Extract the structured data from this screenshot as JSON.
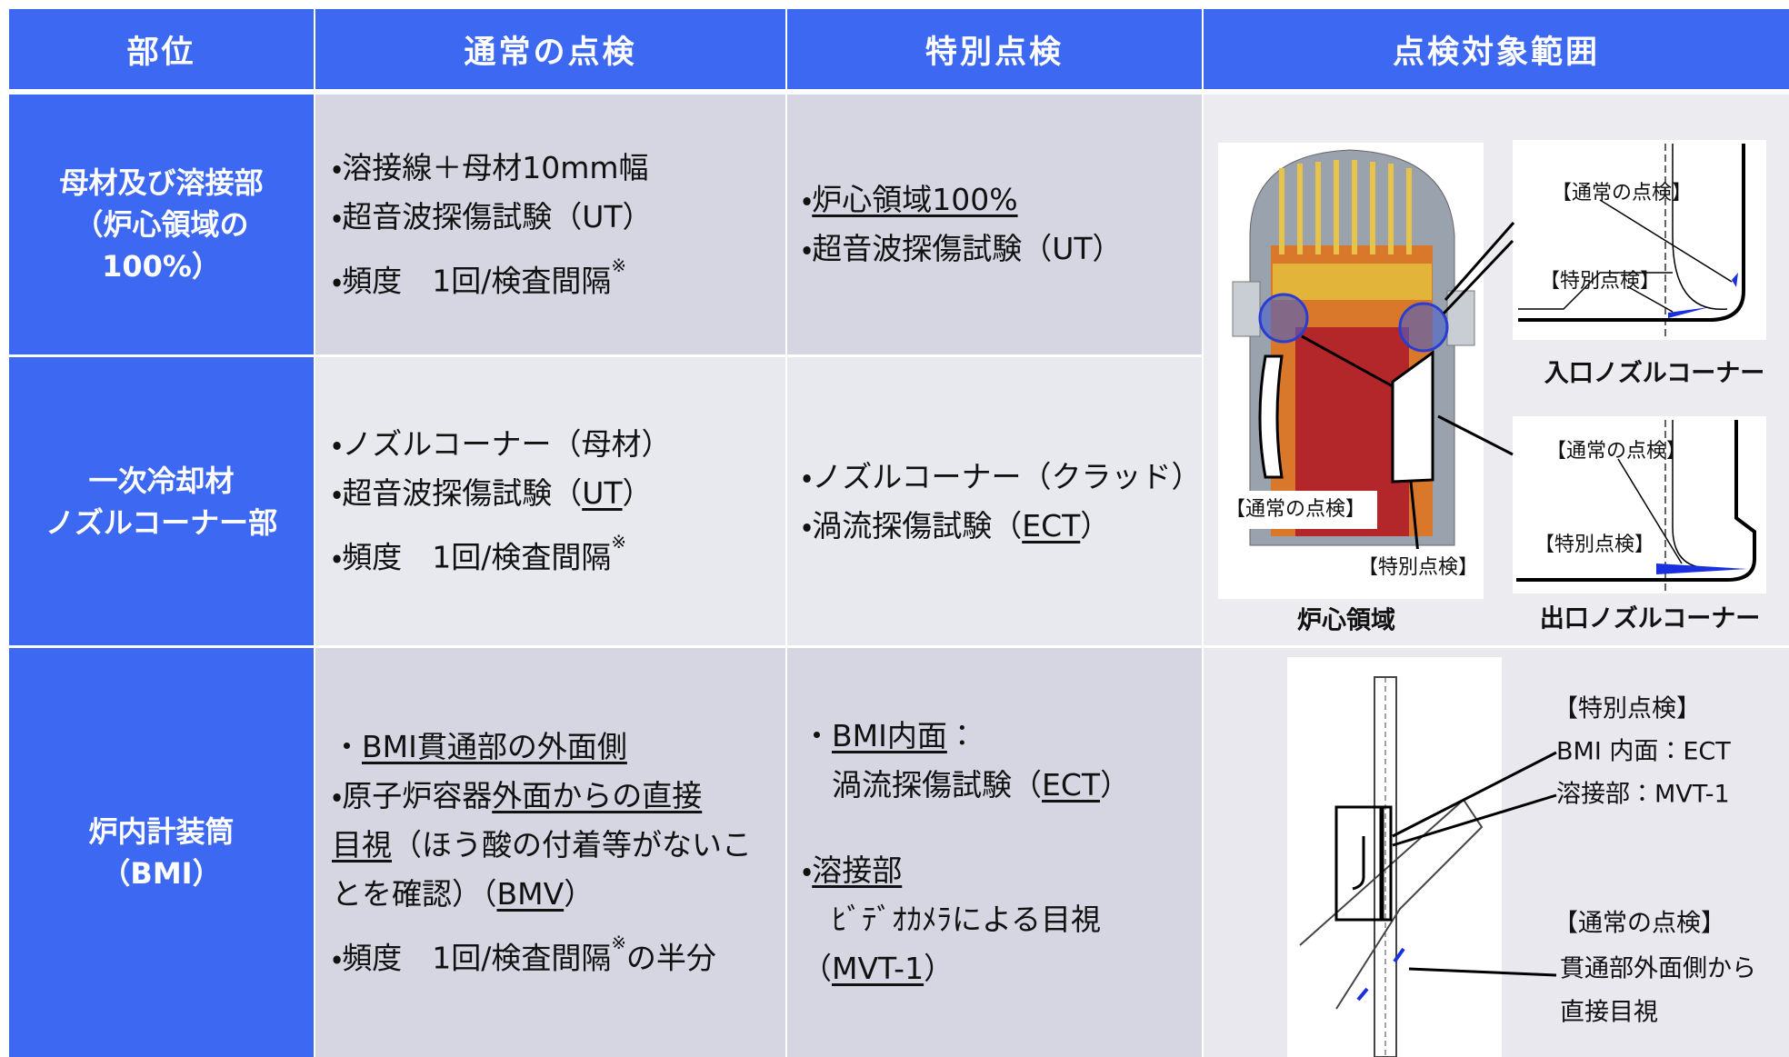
{
  "header": [
    "部位",
    "通常の点検",
    "特別点検",
    "点検対象範囲"
  ],
  "rows": [
    {
      "part": [
        "母材及び溶接部",
        "（炉心領域の",
        "100%）"
      ],
      "normal": [
        [
          [
            "・溶接線＋母材10mm幅"
          ],
          [
            "・超音波探傷試験（UT）"
          ],
          [
            "・頻度　1回/検査間隔",
            {
              "text": "※",
              "superscript": true
            }
          ]
        ]
      ],
      "special": [
        [
          [
            "・",
            {
              "text": "炉心領域100%",
              "underline": true
            }
          ],
          [
            "・超音波探傷試験（UT）"
          ]
        ]
      ]
    },
    {
      "part": [
        "一次冷却材",
        "ノズルコーナー部"
      ],
      "normal": [
        [
          [
            "・ノズルコーナー（母材）"
          ],
          [
            "・超音波探傷試験（",
            {
              "text": "UT",
              "underline": true
            },
            "）"
          ],
          [
            "・頻度　1回/検査間隔",
            {
              "text": "※",
              "superscript": true
            }
          ]
        ]
      ],
      "special": [
        [
          [
            "・ノズルコーナー（クラッド）"
          ],
          [
            "・渦流探傷試験（",
            {
              "text": "ECT",
              "underline": true
            },
            "）"
          ]
        ]
      ]
    },
    {
      "part": [
        "炉内計装筒",
        "（BMI）"
      ],
      "normal": [
        [
          [
            "・",
            {
              "text": "BMI貫通部の外面側",
              "underline": true
            }
          ],
          [
            "・原子炉容器",
            {
              "text": "外面からの直接",
              "underline": true
            }
          ],
          [
            {
              "text": "目視",
              "underline": true
            },
            "（ほう酸の付着等がないこ"
          ],
          [
            "とを確認）（",
            {
              "text": "BMV",
              "underline": true
            },
            "）"
          ],
          [
            "・頻度　1回/検査間隔",
            {
              "text": "※",
              "superscript": true
            },
            "の半分"
          ]
        ]
      ],
      "special": [
        [
          [
            "・",
            {
              "text": "BMI内面",
              "underline": true
            },
            "："
          ],
          [
            "　渦流探傷試験（",
            {
              "text": "ECT",
              "underline": true
            },
            "）"
          ]
        ],
        [
          [
            "・",
            {
              "text": "溶接部",
              "underline": true
            }
          ],
          [
            "　ﾋﾞﾃﾞｵｶﾒﾗによる目視"
          ],
          [
            "（",
            {
              "text": "MVT-1",
              "underline": true
            },
            "）"
          ]
        ]
      ]
    }
  ],
  "figures": {
    "core": {
      "normal_label": "【通常の点検】",
      "special_label": "【特別点検】",
      "caption": "炉心領域"
    },
    "inlet": {
      "normal_label": "【通常の点検】",
      "special_label": "【特別点検】",
      "caption": "入口ノズルコーナー"
    },
    "outlet": {
      "normal_label": "【通常の点検】",
      "special_label": "【特別点検】",
      "caption": "出口ノズルコーナー"
    },
    "bmi": {
      "special_label": "【特別点検】",
      "special_lines": [
        "BMI 内面：ECT",
        "溶接部：MVT-1"
      ],
      "normal_label": "【通常の点検】",
      "normal_lines": [
        "貫通部外面側から",
        "直接目視"
      ]
    }
  }
}
